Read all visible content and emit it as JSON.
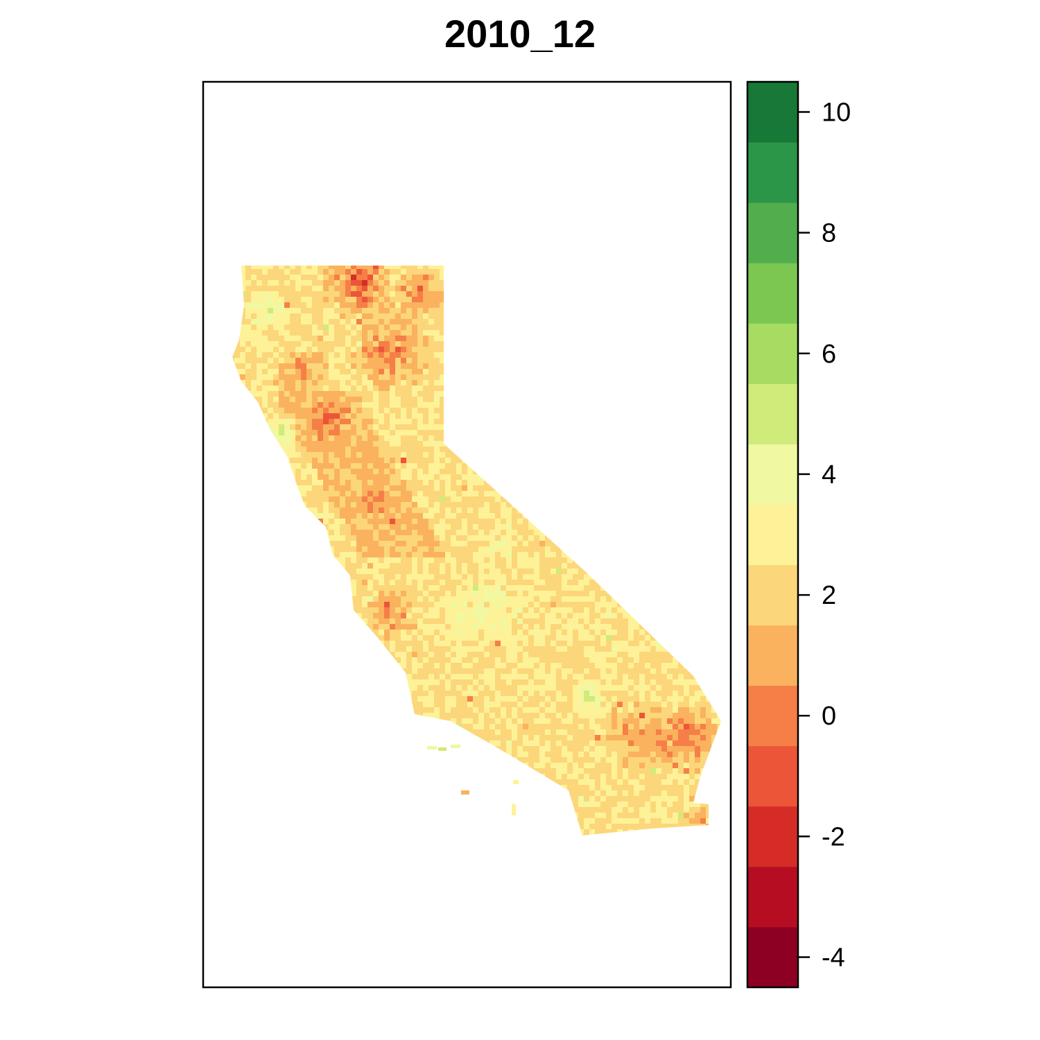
{
  "map": {
    "title": "2010_12"
  },
  "legend": {
    "breaks": [
      -4.5,
      -3.5,
      -2.5,
      -1.5,
      -0.5,
      0.5,
      1.5,
      2.5,
      3.5,
      4.5,
      5.5,
      6.5,
      7.5,
      8.5,
      9.5,
      10.5
    ],
    "colors": [
      "#8e0023",
      "#b60d22",
      "#d62c26",
      "#ec5537",
      "#f57f47",
      "#fab25e",
      "#fcd67a",
      "#fef298",
      "#f0f8a1",
      "#cfeb7a",
      "#a8db62",
      "#7bc752",
      "#52ae4d",
      "#2b9647",
      "#177837",
      "#0b572c"
    ],
    "ticks": [
      {
        "value": 10,
        "label": "10"
      },
      {
        "value": 8,
        "label": "8"
      },
      {
        "value": 6,
        "label": "6"
      },
      {
        "value": 4,
        "label": "4"
      },
      {
        "value": 2,
        "label": "2"
      },
      {
        "value": 0,
        "label": "0"
      },
      {
        "value": -2,
        "label": "-2"
      },
      {
        "value": -4,
        "label": "-4"
      }
    ]
  }
}
